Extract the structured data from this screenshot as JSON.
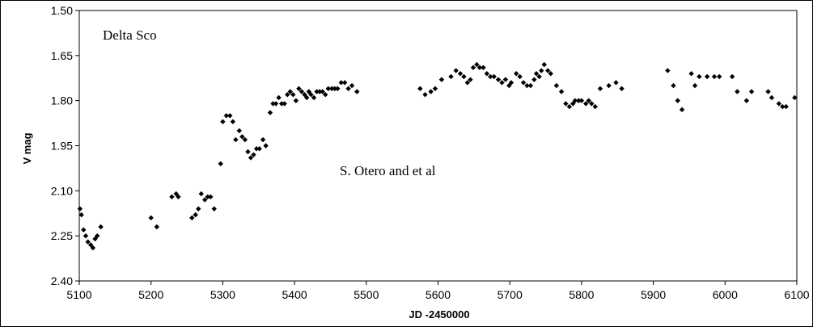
{
  "chart_data": {
    "type": "scatter",
    "title": "",
    "xlabel": "JD -2450000",
    "ylabel": "V mag",
    "xlim": [
      5100,
      6100
    ],
    "ylim": [
      1.5,
      2.4
    ],
    "y_inverted": true,
    "grid": false,
    "legend": "none",
    "x_ticks": [
      "5100",
      "5200",
      "5300",
      "5400",
      "5500",
      "5600",
      "5700",
      "5800",
      "5900",
      "6000",
      "6100"
    ],
    "y_ticks": [
      "1.50",
      "1.65",
      "1.80",
      "1.95",
      "2.10",
      "2.25",
      "2.40"
    ],
    "annotations": [
      "Delta Sco",
      "S. Otero and et al"
    ],
    "marker_color": "#000000",
    "points": [
      [
        5101,
        2.16
      ],
      [
        5103,
        2.18
      ],
      [
        5106,
        2.23
      ],
      [
        5109,
        2.25
      ],
      [
        5112,
        2.27
      ],
      [
        5116,
        2.28
      ],
      [
        5119,
        2.29
      ],
      [
        5122,
        2.26
      ],
      [
        5125,
        2.25
      ],
      [
        5130,
        2.22
      ],
      [
        5200,
        2.19
      ],
      [
        5208,
        2.22
      ],
      [
        5229,
        2.12
      ],
      [
        5235,
        2.11
      ],
      [
        5238,
        2.12
      ],
      [
        5257,
        2.19
      ],
      [
        5262,
        2.18
      ],
      [
        5266,
        2.16
      ],
      [
        5270,
        2.11
      ],
      [
        5275,
        2.13
      ],
      [
        5279,
        2.12
      ],
      [
        5283,
        2.12
      ],
      [
        5288,
        2.16
      ],
      [
        5297,
        2.01
      ],
      [
        5300,
        1.87
      ],
      [
        5305,
        1.85
      ],
      [
        5310,
        1.85
      ],
      [
        5314,
        1.87
      ],
      [
        5318,
        1.93
      ],
      [
        5323,
        1.9
      ],
      [
        5327,
        1.92
      ],
      [
        5331,
        1.93
      ],
      [
        5335,
        1.97
      ],
      [
        5339,
        1.99
      ],
      [
        5343,
        1.98
      ],
      [
        5347,
        1.96
      ],
      [
        5351,
        1.96
      ],
      [
        5356,
        1.93
      ],
      [
        5360,
        1.95
      ],
      [
        5366,
        1.84
      ],
      [
        5370,
        1.81
      ],
      [
        5374,
        1.81
      ],
      [
        5378,
        1.79
      ],
      [
        5382,
        1.81
      ],
      [
        5386,
        1.81
      ],
      [
        5390,
        1.78
      ],
      [
        5394,
        1.77
      ],
      [
        5398,
        1.78
      ],
      [
        5402,
        1.8
      ],
      [
        5406,
        1.76
      ],
      [
        5410,
        1.77
      ],
      [
        5414,
        1.78
      ],
      [
        5417,
        1.79
      ],
      [
        5420,
        1.77
      ],
      [
        5423,
        1.78
      ],
      [
        5427,
        1.79
      ],
      [
        5431,
        1.77
      ],
      [
        5435,
        1.77
      ],
      [
        5439,
        1.77
      ],
      [
        5443,
        1.78
      ],
      [
        5447,
        1.76
      ],
      [
        5452,
        1.76
      ],
      [
        5456,
        1.76
      ],
      [
        5460,
        1.76
      ],
      [
        5465,
        1.74
      ],
      [
        5470,
        1.74
      ],
      [
        5475,
        1.76
      ],
      [
        5480,
        1.75
      ],
      [
        5487,
        1.77
      ],
      [
        5575,
        1.76
      ],
      [
        5582,
        1.78
      ],
      [
        5590,
        1.77
      ],
      [
        5596,
        1.76
      ],
      [
        5605,
        1.73
      ],
      [
        5618,
        1.72
      ],
      [
        5625,
        1.7
      ],
      [
        5631,
        1.71
      ],
      [
        5636,
        1.72
      ],
      [
        5641,
        1.74
      ],
      [
        5645,
        1.73
      ],
      [
        5649,
        1.69
      ],
      [
        5654,
        1.68
      ],
      [
        5658,
        1.69
      ],
      [
        5663,
        1.69
      ],
      [
        5668,
        1.71
      ],
      [
        5673,
        1.72
      ],
      [
        5678,
        1.72
      ],
      [
        5684,
        1.73
      ],
      [
        5689,
        1.74
      ],
      [
        5694,
        1.73
      ],
      [
        5699,
        1.75
      ],
      [
        5702,
        1.74
      ],
      [
        5709,
        1.71
      ],
      [
        5714,
        1.72
      ],
      [
        5719,
        1.74
      ],
      [
        5724,
        1.75
      ],
      [
        5729,
        1.75
      ],
      [
        5734,
        1.73
      ],
      [
        5737,
        1.71
      ],
      [
        5741,
        1.72
      ],
      [
        5744,
        1.7
      ],
      [
        5748,
        1.68
      ],
      [
        5753,
        1.7
      ],
      [
        5757,
        1.71
      ],
      [
        5765,
        1.75
      ],
      [
        5772,
        1.77
      ],
      [
        5778,
        1.81
      ],
      [
        5783,
        1.82
      ],
      [
        5788,
        1.81
      ],
      [
        5791,
        1.8
      ],
      [
        5796,
        1.8
      ],
      [
        5800,
        1.8
      ],
      [
        5806,
        1.81
      ],
      [
        5810,
        1.8
      ],
      [
        5814,
        1.81
      ],
      [
        5819,
        1.82
      ],
      [
        5826,
        1.76
      ],
      [
        5838,
        1.75
      ],
      [
        5848,
        1.74
      ],
      [
        5856,
        1.76
      ],
      [
        5920,
        1.7
      ],
      [
        5928,
        1.75
      ],
      [
        5934,
        1.8
      ],
      [
        5940,
        1.83
      ],
      [
        5953,
        1.71
      ],
      [
        5958,
        1.75
      ],
      [
        5964,
        1.72
      ],
      [
        5975,
        1.72
      ],
      [
        5985,
        1.72
      ],
      [
        5992,
        1.72
      ],
      [
        6010,
        1.72
      ],
      [
        6017,
        1.77
      ],
      [
        6030,
        1.8
      ],
      [
        6037,
        1.77
      ],
      [
        6060,
        1.77
      ],
      [
        6065,
        1.79
      ],
      [
        6075,
        1.81
      ],
      [
        6080,
        1.82
      ],
      [
        6085,
        1.82
      ],
      [
        6097,
        1.79
      ]
    ]
  }
}
